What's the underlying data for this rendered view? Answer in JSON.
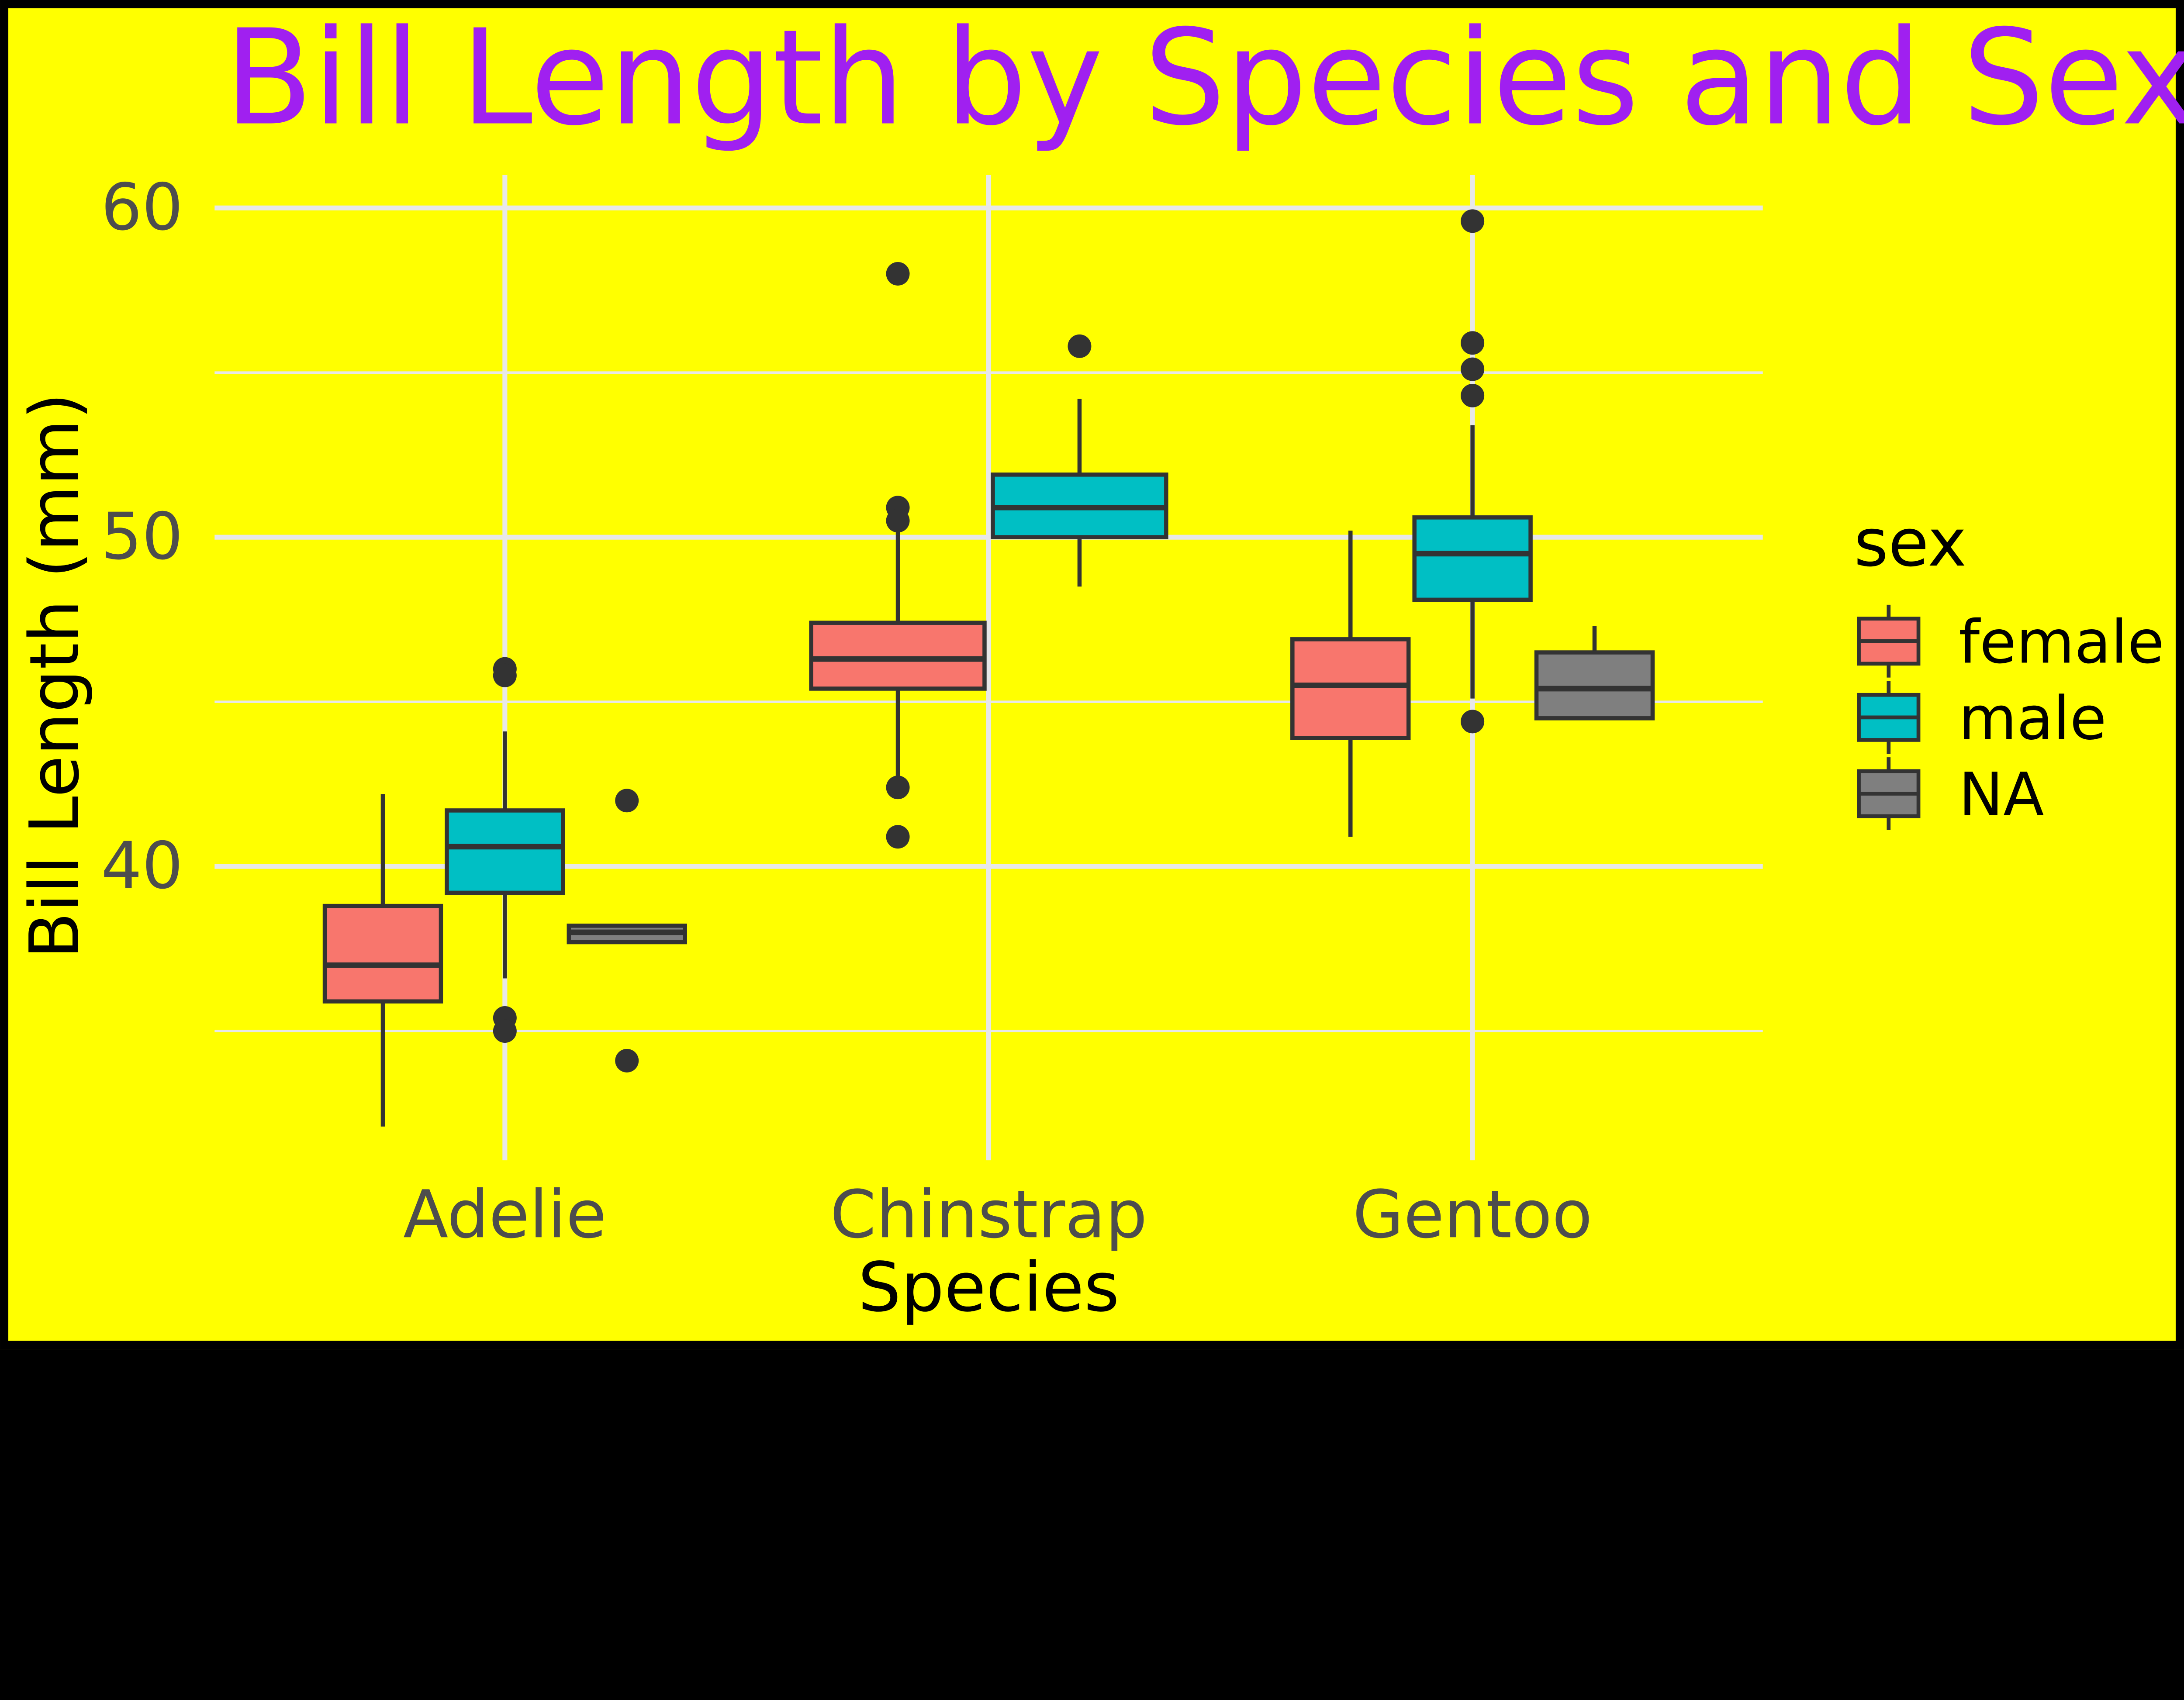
{
  "chart_data": {
    "type": "boxplot",
    "title": "Bill Length by Species and Sex",
    "xlabel": "Species",
    "ylabel": "Bill Length (mm)",
    "categories": [
      "Adelie",
      "Chinstrap",
      "Gentoo"
    ],
    "y_ticks": [
      40,
      50,
      60
    ],
    "y_minor_gridlines": [
      35,
      45,
      55
    ],
    "ylim": [
      30.9,
      61.0
    ],
    "legend": {
      "title": "sex",
      "entries": [
        "female",
        "male",
        "NA"
      ]
    },
    "colors": {
      "female": "#F8766D",
      "male": "#00BFC4",
      "NA": "#7F7F7F",
      "stroke": "#333333",
      "background": "#FFFF00",
      "gridline": "#E8E8E8",
      "tick_text": "#4D4D4D",
      "axis_title": "#000000",
      "title_color": "#A020F0",
      "frame": "#000000"
    },
    "boxes": [
      {
        "species": "Adelie",
        "sex": "female",
        "whisker_low": 32.1,
        "q1": 35.9,
        "median": 37.0,
        "q3": 38.8,
        "whisker_high": 42.2,
        "outliers": []
      },
      {
        "species": "Adelie",
        "sex": "male",
        "whisker_low": 36.6,
        "q1": 39.2,
        "median": 40.6,
        "q3": 41.7,
        "whisker_high": 44.1,
        "outliers": [
          46.0,
          45.8,
          35.4,
          35.0
        ]
      },
      {
        "species": "Adelie",
        "sex": "NA",
        "whisker_low": 37.7,
        "q1": 37.7,
        "median": 38.0,
        "q3": 38.2,
        "whisker_high": 38.2,
        "outliers": [
          42.0,
          34.1
        ]
      },
      {
        "species": "Chinstrap",
        "sex": "female",
        "whisker_low": 42.5,
        "q1": 45.4,
        "median": 46.3,
        "q3": 47.4,
        "whisker_high": 50.2,
        "outliers": [
          58.0,
          50.9,
          50.5,
          42.4,
          40.9
        ]
      },
      {
        "species": "Chinstrap",
        "sex": "male",
        "whisker_low": 48.5,
        "q1": 50.0,
        "median": 50.9,
        "q3": 51.9,
        "whisker_high": 54.2,
        "outliers": [
          55.8
        ]
      },
      {
        "species": "Gentoo",
        "sex": "female",
        "whisker_low": 40.9,
        "q1": 43.9,
        "median": 45.5,
        "q3": 46.9,
        "whisker_high": 50.2,
        "outliers": []
      },
      {
        "species": "Gentoo",
        "sex": "male",
        "whisker_low": 45.1,
        "q1": 48.1,
        "median": 49.5,
        "q3": 50.6,
        "whisker_high": 53.4,
        "outliers": [
          59.6,
          55.9,
          55.1,
          54.3,
          44.4
        ]
      },
      {
        "species": "Gentoo",
        "sex": "NA",
        "whisker_low": 44.5,
        "q1": 44.5,
        "median": 45.4,
        "q3": 46.5,
        "whisker_high": 47.3,
        "outliers": []
      }
    ]
  }
}
